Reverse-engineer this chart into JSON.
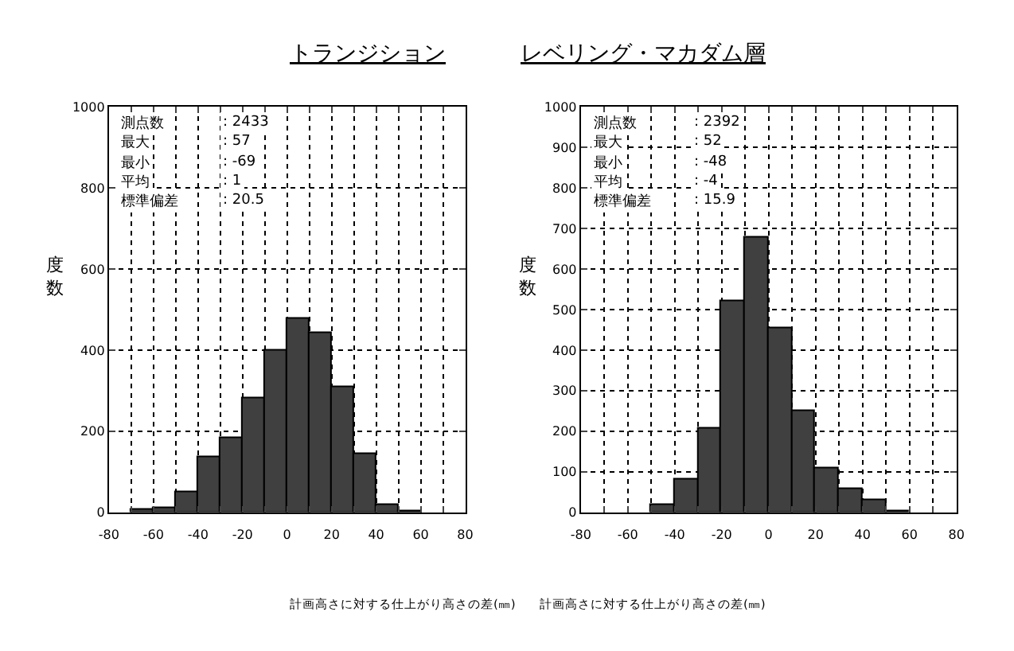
{
  "chart_data": [
    {
      "type": "histogram",
      "title": "トランジション",
      "xlabel": "計画高さに対する仕上がり高さの差(㎜)",
      "ylabel": "度数",
      "bins": [
        -70,
        -60,
        -50,
        -40,
        -30,
        -20,
        -10,
        0,
        10,
        20,
        30,
        40,
        50,
        60
      ],
      "values": [
        8,
        12,
        48,
        135,
        185,
        280,
        398,
        477,
        443,
        307,
        143,
        17,
        3
      ],
      "color": "#404040",
      "xlim": [
        -80,
        80
      ],
      "ylim": [
        0,
        1000
      ],
      "xticks": [
        -80,
        {
          "value": -70,
          "label": null
        },
        -60,
        {
          "value": -50,
          "label": null
        },
        -40,
        {
          "value": -30,
          "label": null
        },
        -20,
        {
          "value": -10,
          "label": null
        },
        0,
        {
          "value": 10,
          "label": null
        },
        20,
        {
          "value": 30,
          "label": null
        },
        40,
        {
          "value": 50,
          "label": null
        },
        60,
        {
          "value": 70,
          "label": null
        },
        80
      ],
      "yticks": [
        0,
        200,
        400,
        600,
        800,
        1000
      ],
      "grid": true,
      "annotations": [
        "測点数\t: 2433",
        "最大\t: 57",
        "最小\t: -69",
        "平均\t: 1",
        "標準偏差\t: 20.5"
      ]
    },
    {
      "type": "histogram",
      "title": "レベリング・マカダム層",
      "xlabel": "計画高さに対する仕上がり高さの差(㎜)",
      "ylabel": "度数",
      "bins": [
        -50,
        -40,
        -30,
        -20,
        -10,
        0,
        10,
        20,
        30,
        40,
        50,
        60
      ],
      "values": [
        20,
        82,
        207,
        521,
        677,
        456,
        249,
        109,
        56,
        28,
        3
      ],
      "color": "#404040",
      "xlim": [
        -80,
        80
      ],
      "ylim": [
        0,
        1000
      ],
      "xticks": [
        -80,
        {
          "value": -70,
          "label": null
        },
        -60,
        {
          "value": -50,
          "label": null
        },
        -40,
        {
          "value": -30,
          "label": null
        },
        -20,
        {
          "value": -10,
          "label": null
        },
        0,
        {
          "value": 10,
          "label": null
        },
        20,
        {
          "value": 30,
          "label": null
        },
        40,
        {
          "value": 50,
          "label": null
        },
        60,
        {
          "value": 70,
          "label": null
        },
        80
      ],
      "yticks": [
        0,
        100,
        200,
        300,
        400,
        500,
        600,
        700,
        800,
        900,
        1000
      ],
      "grid": true,
      "annotations": [
        "測点数\t: 2392",
        "最大\t: 52",
        "最小\t: -48",
        "平均\t: -4",
        "標準偏差\t: 15.9"
      ]
    }
  ]
}
